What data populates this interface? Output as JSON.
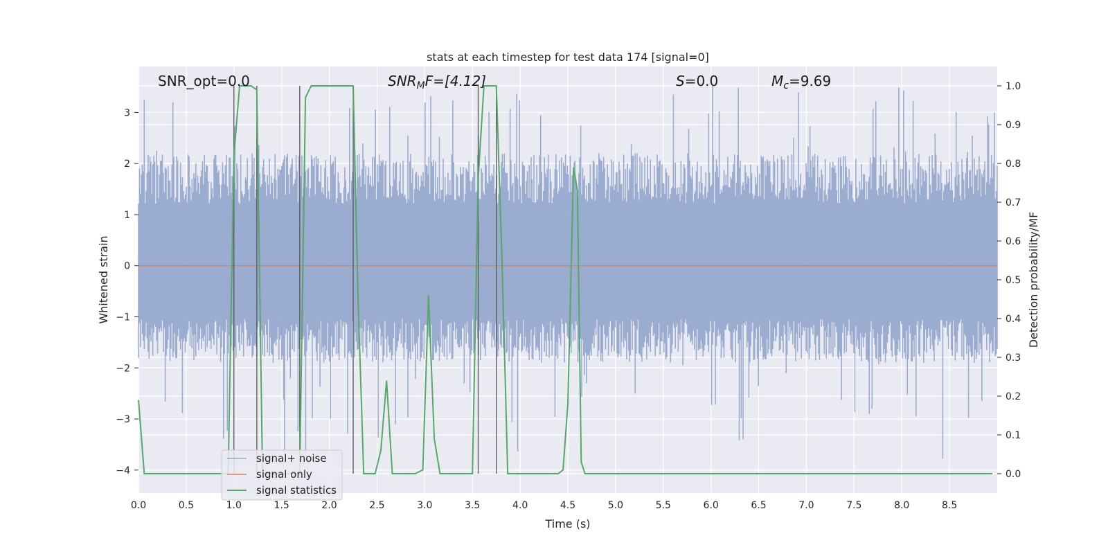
{
  "chart_data": {
    "type": "line",
    "title": "stats at each timestep for test data 174 [signal=0]",
    "xlabel": "Time (s)",
    "ylabel": "Whitened strain",
    "y2label": "Detection probability/MF",
    "xlim": [
      0,
      9.0
    ],
    "ylim": [
      -4.45,
      3.9
    ],
    "y2lim": [
      -0.05,
      1.05
    ],
    "x_ticks": [
      "0.0",
      "0.5",
      "1.0",
      "1.5",
      "2.0",
      "2.5",
      "3.0",
      "3.5",
      "4.0",
      "4.5",
      "5.0",
      "5.5",
      "6.0",
      "6.5",
      "7.0",
      "7.5",
      "8.0",
      "8.5"
    ],
    "y_ticks": [
      "3",
      "2",
      "1",
      "0",
      "−1",
      "−2",
      "−3",
      "−4"
    ],
    "y2_ticks": [
      "1.0",
      "0.9",
      "0.8",
      "0.7",
      "0.6",
      "0.5",
      "0.4",
      "0.3",
      "0.2",
      "0.1",
      "0.0"
    ],
    "grid": true,
    "legend_position": "lower-left",
    "annotations": {
      "snr_opt": "SNR_opt=0.0",
      "snr_mf_main": "SNR",
      "snr_mf_sub": "M",
      "snr_mf_tail": "F=[4.12]",
      "s_italic": "S",
      "s_value": "=0.0",
      "mc_italic": "M",
      "mc_sub": "c",
      "mc_value": "=9.69"
    },
    "vertical_markers_s": [
      1.0,
      1.24,
      1.69,
      2.25,
      3.56,
      3.75
    ],
    "series": [
      {
        "name": "signal+ noise",
        "color": "#97a9cf",
        "axis": "left",
        "noise_envelope": {
          "typical_max": 2.2,
          "typical_min": -1.9,
          "peak_max": 3.55,
          "peak_min": -4.0
        }
      },
      {
        "name": "signal only",
        "color": "#dd8452",
        "axis": "left",
        "constant_value": 0
      },
      {
        "name": "signal statistics",
        "color": "#55a868",
        "axis": "right",
        "x": [
          0.0,
          0.06,
          0.12,
          0.2,
          0.4,
          0.6,
          0.8,
          0.94,
          1.0,
          1.06,
          1.12,
          1.18,
          1.24,
          1.3,
          1.36,
          1.42,
          1.48,
          1.55,
          1.62,
          1.69,
          1.75,
          1.81,
          1.87,
          2.0,
          2.15,
          2.25,
          2.3,
          2.36,
          2.42,
          2.48,
          2.54,
          2.6,
          2.66,
          2.72,
          2.8,
          2.9,
          2.98,
          3.04,
          3.1,
          3.16,
          3.22,
          3.3,
          3.4,
          3.5,
          3.56,
          3.62,
          3.68,
          3.75,
          3.81,
          3.87,
          4.0,
          4.2,
          4.4,
          4.45,
          4.5,
          4.56,
          4.6,
          4.64,
          4.68,
          4.74,
          4.8,
          4.9,
          5.5,
          6.5,
          7.5,
          8.5,
          8.95
        ],
        "values": [
          0.19,
          0.0,
          0.0,
          0.0,
          0.0,
          0.0,
          0.0,
          0.0,
          0.82,
          1.0,
          1.0,
          1.0,
          0.99,
          0.0,
          0.0,
          0.0,
          0.0,
          0.0,
          0.0,
          0.0,
          0.97,
          1.0,
          1.0,
          1.0,
          1.0,
          1.0,
          0.46,
          0.0,
          0.0,
          0.0,
          0.06,
          0.24,
          0.0,
          0.0,
          0.0,
          0.0,
          0.01,
          0.46,
          0.09,
          0.0,
          0.0,
          0.0,
          0.0,
          0.0,
          0.76,
          1.0,
          1.0,
          1.0,
          0.55,
          0.0,
          0.0,
          0.0,
          0.0,
          0.01,
          0.18,
          0.79,
          0.73,
          0.03,
          0.0,
          0.0,
          0.0,
          0.0,
          0.0,
          0.0,
          0.0,
          0.0,
          0.0
        ]
      }
    ]
  }
}
